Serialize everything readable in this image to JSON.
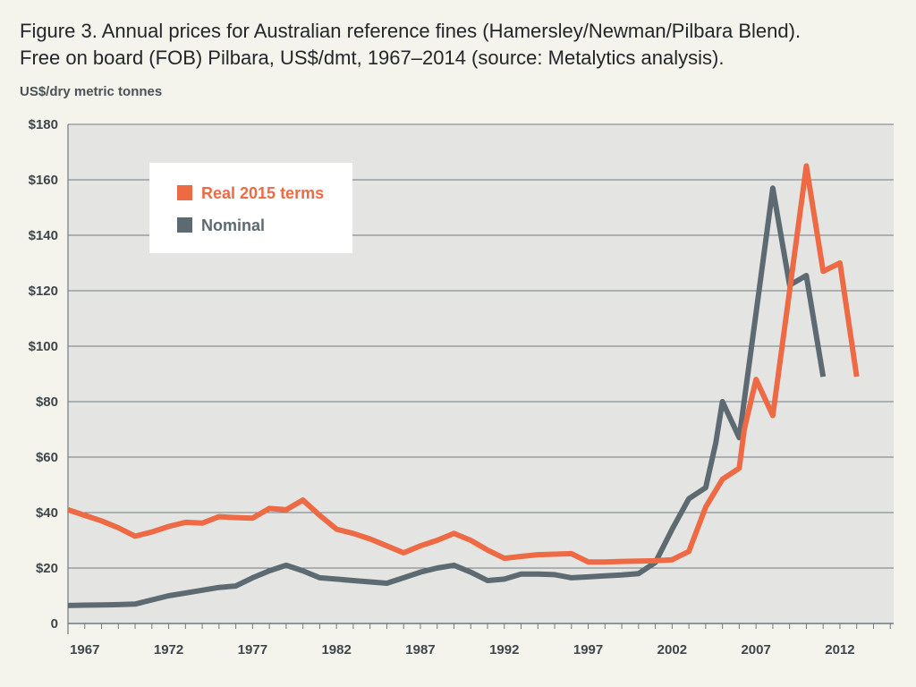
{
  "title_lines": [
    "Figure 3. Annual prices for Australian reference fines (Hamersley/Newman/Pilbara Blend).",
    "Free on board (FOB) Pilbara, US$/dmt, 1967–2014 (source: Metalytics analysis)."
  ],
  "colors": {
    "real": "#ee6a45",
    "nominal": "#5d6a72",
    "plot_bg": "#e4e5e3",
    "grid": "#6f7a82"
  },
  "chart_data": {
    "type": "line",
    "title": "Figure 3. Annual prices for Australian reference fines (Hamersley/Newman/Pilbara Blend). Free on board (FOB) Pilbara, US$/dmt, 1967–2014 (source: Metalytics analysis).",
    "ylabel": "US$/dry metric tonnes",
    "xlabel": "",
    "xlim": [
      1966,
      2015.2
    ],
    "ylim": [
      0,
      180
    ],
    "y_ticks": [
      0,
      20,
      40,
      60,
      80,
      100,
      120,
      140,
      160,
      180
    ],
    "y_tick_labels": [
      "0",
      "$20",
      "$40",
      "$60",
      "$80",
      "$100",
      "$120",
      "$140",
      "$160",
      "$180"
    ],
    "x_ticks": [
      1967,
      1972,
      1977,
      1982,
      1987,
      1992,
      1997,
      2002,
      2007,
      2012
    ],
    "x_tick_labels": [
      "1967",
      "1972",
      "1977",
      "1982",
      "1987",
      "1992",
      "1997",
      "2002",
      "2007",
      "2012"
    ],
    "grid": "horizontal",
    "legend_position": "top-left",
    "series": [
      {
        "name": "Real 2015 terms",
        "color": "#ee6a45",
        "points": [
          [
            1966,
            41
          ],
          [
            1967,
            39
          ],
          [
            1968,
            37
          ],
          [
            1969,
            34.5
          ],
          [
            1970,
            31.5
          ],
          [
            1971,
            33
          ],
          [
            1972,
            35
          ],
          [
            1973,
            36.5
          ],
          [
            1974,
            36.2
          ],
          [
            1975,
            38.5
          ],
          [
            1976,
            38.2
          ],
          [
            1977,
            38
          ],
          [
            1978,
            41.5
          ],
          [
            1979,
            41
          ],
          [
            1980,
            44.5
          ],
          [
            1981,
            39
          ],
          [
            1982,
            34
          ],
          [
            1983,
            32.5
          ],
          [
            1984,
            30.5
          ],
          [
            1985,
            28
          ],
          [
            1986,
            25.5
          ],
          [
            1987,
            28
          ],
          [
            1988,
            30
          ],
          [
            1989,
            32.5
          ],
          [
            1990,
            30
          ],
          [
            1991,
            26.5
          ],
          [
            1992,
            23.5
          ],
          [
            1993,
            24.2
          ],
          [
            1994,
            24.8
          ],
          [
            1995,
            25
          ],
          [
            1996,
            25.2
          ],
          [
            1997,
            22.2
          ],
          [
            1998,
            22.2
          ],
          [
            1999,
            22.4
          ],
          [
            2000,
            22.5
          ],
          [
            2001,
            22.6
          ],
          [
            2002,
            23
          ],
          [
            2003,
            26
          ],
          [
            2004,
            42
          ],
          [
            2005,
            52
          ],
          [
            2006,
            56
          ],
          [
            2006.3,
            70
          ],
          [
            2007,
            88
          ],
          [
            2008,
            75
          ],
          [
            2009,
            120
          ],
          [
            2010,
            165
          ],
          [
            2011,
            127
          ],
          [
            2012,
            130
          ],
          [
            2013,
            89
          ]
        ]
      },
      {
        "name": "Nominal",
        "color": "#5d6a72",
        "points": [
          [
            1966,
            6.5
          ],
          [
            1967,
            6.6
          ],
          [
            1968,
            6.7
          ],
          [
            1969,
            6.8
          ],
          [
            1970,
            7
          ],
          [
            1971,
            8.5
          ],
          [
            1972,
            10
          ],
          [
            1973,
            11
          ],
          [
            1974,
            12
          ],
          [
            1975,
            13
          ],
          [
            1976,
            13.5
          ],
          [
            1977,
            16.5
          ],
          [
            1978,
            19
          ],
          [
            1979,
            21
          ],
          [
            1980,
            19
          ],
          [
            1981,
            16.5
          ],
          [
            1982,
            16
          ],
          [
            1983,
            15.5
          ],
          [
            1984,
            15
          ],
          [
            1985,
            14.5
          ],
          [
            1986,
            16.5
          ],
          [
            1987,
            18.5
          ],
          [
            1988,
            20
          ],
          [
            1989,
            21
          ],
          [
            1990,
            18.5
          ],
          [
            1991,
            15.5
          ],
          [
            1992,
            16
          ],
          [
            1993,
            17.8
          ],
          [
            1994,
            17.8
          ],
          [
            1995,
            17.6
          ],
          [
            1996,
            16.5
          ],
          [
            1997,
            16.8
          ],
          [
            1998,
            17.2
          ],
          [
            1999,
            17.5
          ],
          [
            2000,
            18
          ],
          [
            2001,
            22
          ],
          [
            2002,
            34
          ],
          [
            2003,
            45
          ],
          [
            2004,
            49
          ],
          [
            2004.6,
            65
          ],
          [
            2005,
            80
          ],
          [
            2006,
            67
          ],
          [
            2007,
            112
          ],
          [
            2008,
            157
          ],
          [
            2009,
            122
          ],
          [
            2010,
            125.5
          ],
          [
            2011,
            89
          ]
        ]
      }
    ]
  }
}
